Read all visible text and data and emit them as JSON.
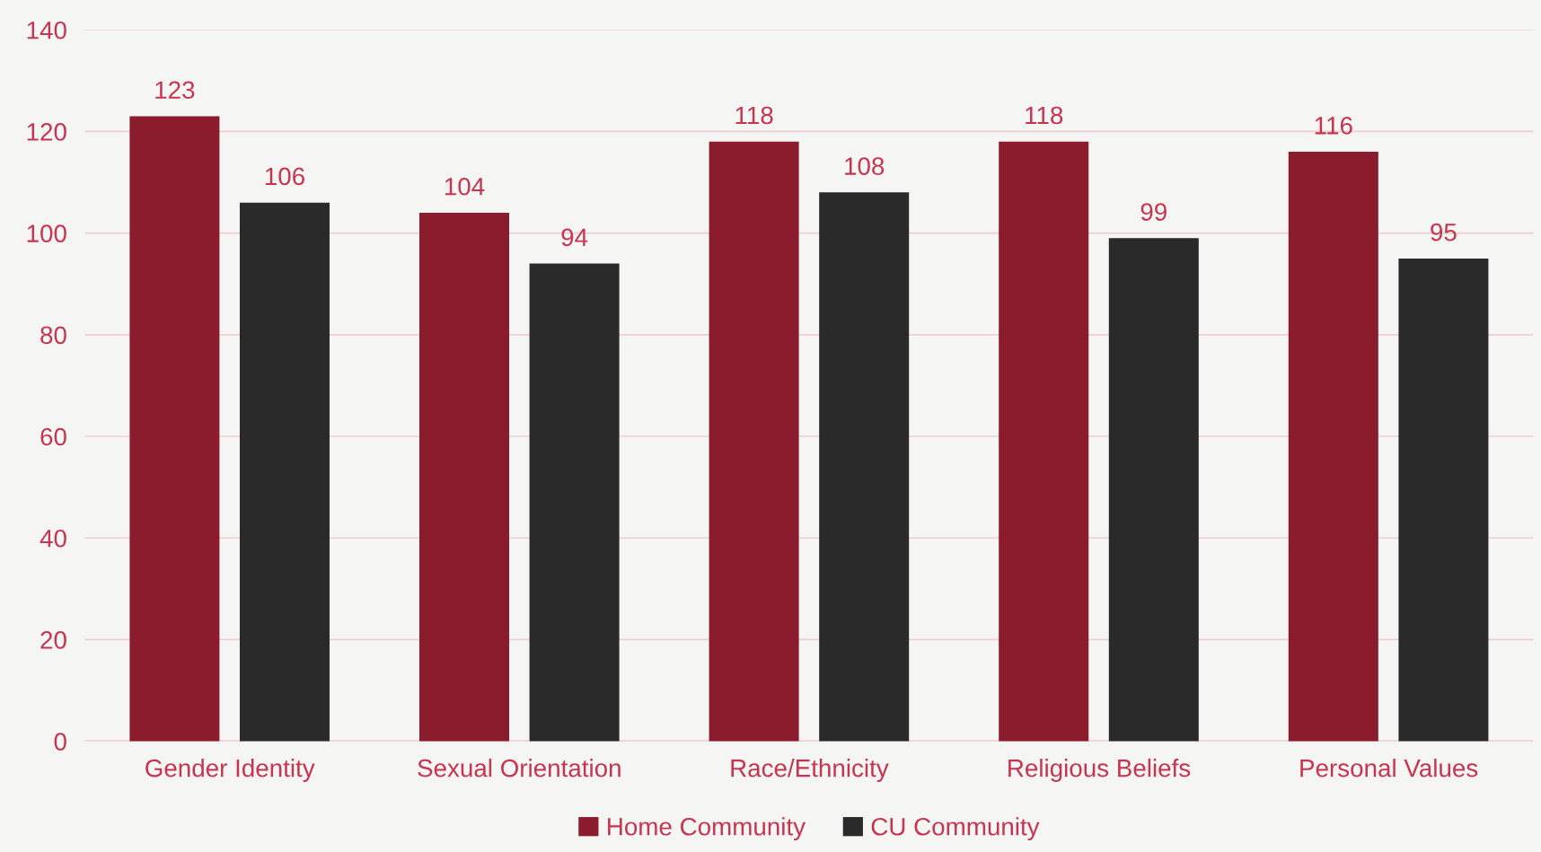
{
  "chart_data": {
    "type": "bar",
    "categories": [
      "Gender Identity",
      "Sexual Orientation",
      "Race/Ethnicity",
      "Religious Beliefs",
      "Personal Values"
    ],
    "series": [
      {
        "name": "Home Community",
        "color": "#8b1c2e",
        "values": [
          123,
          104,
          118,
          118,
          116
        ]
      },
      {
        "name": "CU Community",
        "color": "#2a2a2a",
        "values": [
          106,
          94,
          108,
          99,
          95
        ]
      }
    ],
    "ylim": [
      0,
      140
    ],
    "yticks": [
      0,
      20,
      40,
      60,
      80,
      100,
      120,
      140
    ],
    "grid": "y",
    "legend": "bottom",
    "data_labels": true
  }
}
